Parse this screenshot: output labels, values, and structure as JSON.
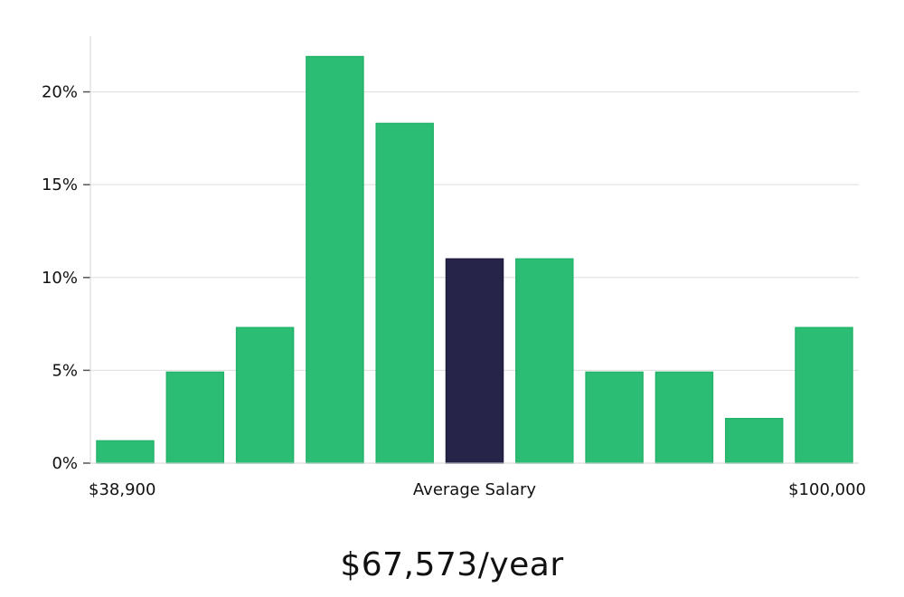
{
  "chart_data": {
    "type": "bar",
    "values": [
      1.2,
      4.9,
      7.3,
      21.9,
      18.3,
      11.0,
      11.0,
      4.9,
      4.9,
      2.4,
      7.3
    ],
    "highlight_index": 5,
    "ylim": [
      0,
      23
    ],
    "y_ticks": [
      0,
      5,
      10,
      15,
      20
    ],
    "y_tick_labels": [
      "0%",
      "5%",
      "10%",
      "15%",
      "20%"
    ],
    "x_labels": {
      "min": "$38,900",
      "center": "Average Salary",
      "max": "$100,000"
    },
    "grid": true,
    "colors": {
      "bar": "#2bbd74",
      "bar_edge": "#25b36b",
      "highlight": "#27244a",
      "grid": "#dedede",
      "axis": "#d6d6d6"
    }
  },
  "footer": {
    "salary": "$67,573/year"
  }
}
